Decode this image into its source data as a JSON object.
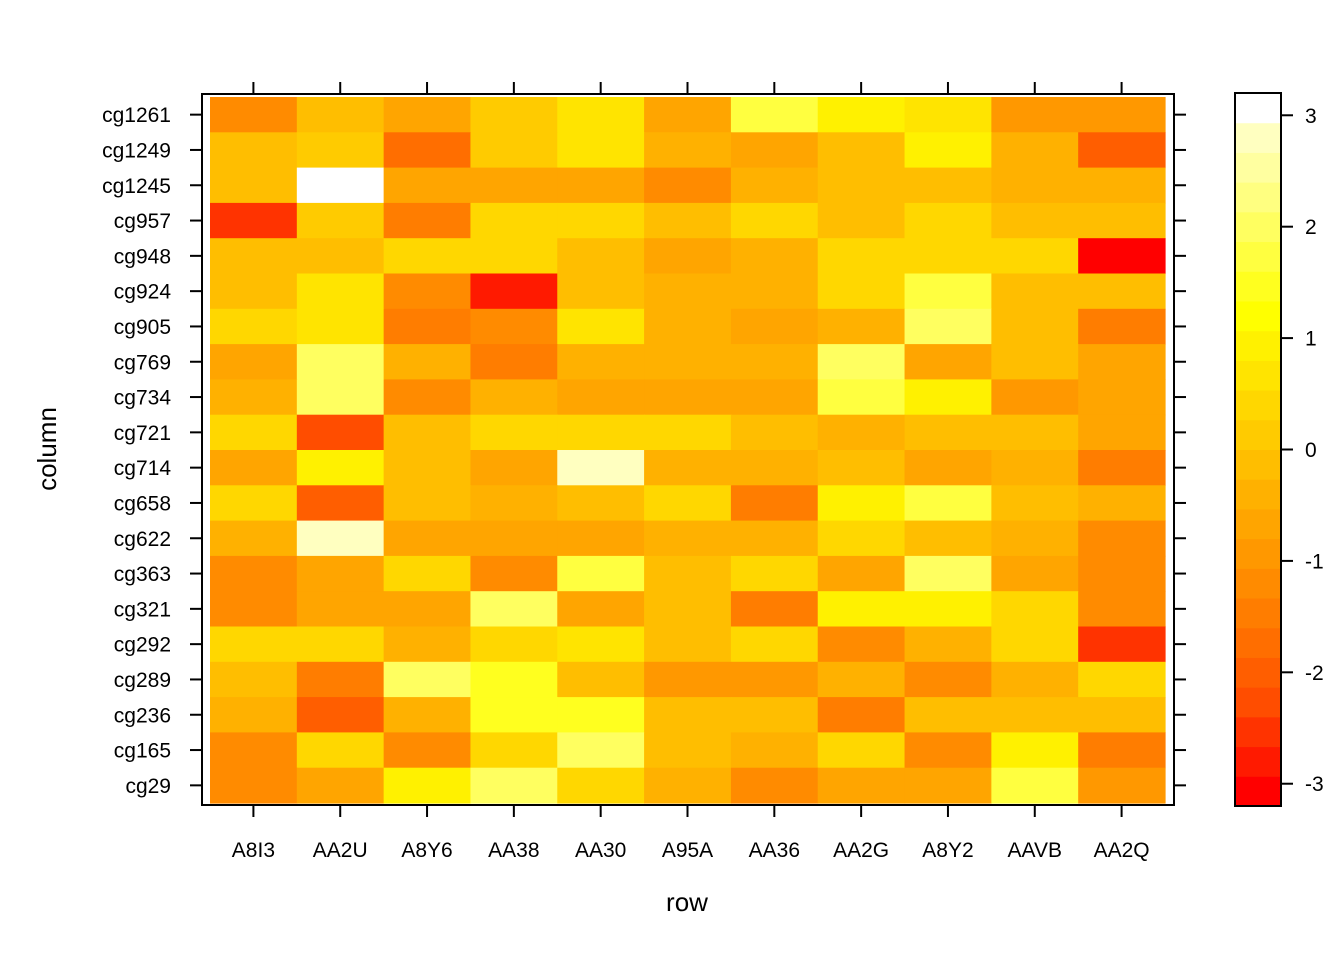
{
  "chart_data": {
    "type": "heatmap",
    "title": "",
    "xlabel": "row",
    "ylabel": "column",
    "x_categories": [
      "A8I3",
      "AA2U",
      "A8Y6",
      "AA38",
      "AA30",
      "A95A",
      "AA36",
      "AA2G",
      "A8Y2",
      "AAVB",
      "AA2Q"
    ],
    "y_categories_top_to_bottom": [
      "cg1261",
      "cg1249",
      "cg1245",
      "cg957",
      "cg948",
      "cg924",
      "cg905",
      "cg769",
      "cg734",
      "cg721",
      "cg714",
      "cg658",
      "cg622",
      "cg363",
      "cg321",
      "cg292",
      "cg289",
      "cg236",
      "cg165",
      "cg29"
    ],
    "values": [
      [
        -1.3,
        -0.2,
        -0.6,
        0.2,
        0.7,
        -0.6,
        1.6,
        0.8,
        0.7,
        -1.0,
        -1.0
      ],
      [
        -0.2,
        0.2,
        -1.8,
        0.2,
        0.7,
        -0.4,
        -0.8,
        -0.2,
        0.8,
        -0.3,
        -2.0
      ],
      [
        -0.2,
        3.1,
        -0.7,
        -0.7,
        -0.7,
        -1.2,
        -0.4,
        -0.2,
        -0.2,
        -0.5,
        -0.4
      ],
      [
        -2.5,
        0.2,
        -1.4,
        0.4,
        0.4,
        -0.2,
        0.3,
        -0.2,
        0.3,
        -0.2,
        -0.2
      ],
      [
        -0.1,
        -0.1,
        0.3,
        0.3,
        -0.1,
        -0.8,
        -0.4,
        0.3,
        0.3,
        0.3,
        -3.0
      ],
      [
        -0.2,
        0.7,
        -1.2,
        -2.7,
        -0.2,
        -0.4,
        -0.4,
        0.3,
        1.6,
        -0.2,
        -0.1
      ],
      [
        0.3,
        0.7,
        -1.5,
        -1.3,
        0.6,
        -0.5,
        -0.8,
        -0.4,
        1.9,
        -0.2,
        -1.4
      ],
      [
        -0.6,
        1.9,
        -0.4,
        -1.6,
        -0.5,
        -0.5,
        -0.5,
        2.0,
        -0.6,
        -0.2,
        -0.7
      ],
      [
        -0.4,
        1.9,
        -1.2,
        -0.4,
        -0.8,
        -0.8,
        -0.8,
        1.6,
        0.8,
        -0.9,
        -0.7
      ],
      [
        0.3,
        -2.3,
        -0.2,
        0.3,
        0.3,
        0.3,
        -0.2,
        -0.4,
        -0.2,
        -0.2,
        -0.7
      ],
      [
        -0.7,
        0.8,
        -0.2,
        -0.8,
        2.8,
        -0.5,
        -0.5,
        -0.2,
        -0.8,
        -0.5,
        -1.4
      ],
      [
        0.3,
        -2.0,
        -0.2,
        -0.4,
        -0.2,
        0.3,
        -1.4,
        0.8,
        1.6,
        -0.2,
        -0.4
      ],
      [
        -0.5,
        2.8,
        -0.7,
        -0.7,
        -0.7,
        -0.5,
        -0.5,
        0.3,
        -0.2,
        -0.5,
        -1.1
      ],
      [
        -1.1,
        -0.7,
        0.3,
        -1.3,
        1.6,
        -0.2,
        0.3,
        -0.6,
        1.9,
        -0.7,
        -1.1
      ],
      [
        -1.1,
        -0.7,
        -0.7,
        1.9,
        -0.7,
        -0.2,
        -1.5,
        0.8,
        0.8,
        0.3,
        -1.1
      ],
      [
        0.3,
        0.3,
        -0.4,
        0.3,
        0.7,
        -0.2,
        0.3,
        -1.2,
        -0.4,
        0.3,
        -2.6
      ],
      [
        -0.2,
        -1.6,
        2.0,
        1.4,
        -0.2,
        -0.9,
        -0.9,
        -0.4,
        -1.3,
        -0.4,
        0.3
      ],
      [
        -0.4,
        -1.9,
        -0.4,
        1.4,
        1.4,
        -0.2,
        -0.2,
        -1.5,
        -0.2,
        -0.2,
        -0.2
      ],
      [
        -1.3,
        0.3,
        -1.2,
        0.3,
        2.0,
        -0.2,
        -0.5,
        0.3,
        -1.2,
        0.8,
        -1.4
      ],
      [
        -1.1,
        -0.7,
        0.8,
        2.0,
        0.4,
        -0.5,
        -1.1,
        -0.7,
        -0.7,
        1.6,
        -1.0
      ]
    ],
    "colorbar": {
      "min": -3.2,
      "max": 3.2,
      "levels": 24,
      "ticks": [
        -3,
        -2,
        -1,
        0,
        1,
        2,
        3
      ],
      "tick_labels": [
        "-3",
        "-2",
        "-1",
        "0",
        "1",
        "2",
        "3"
      ],
      "colors_low_to_high": [
        "#FF0000",
        "#FF1A00",
        "#FF3300",
        "#FF4D00",
        "#FF5E00",
        "#FF6E00",
        "#FF7D00",
        "#FF8B00",
        "#FF9800",
        "#FFA500",
        "#FFB100",
        "#FFBE00",
        "#FFCB00",
        "#FFD700",
        "#FFE400",
        "#FFF100",
        "#FFFF00",
        "#FFFF1F",
        "#FFFF40",
        "#FFFF60",
        "#FFFF80",
        "#FFFFA0",
        "#FFFFC0",
        "#FFFFFF"
      ]
    },
    "grid": false,
    "legend_position": "right"
  }
}
